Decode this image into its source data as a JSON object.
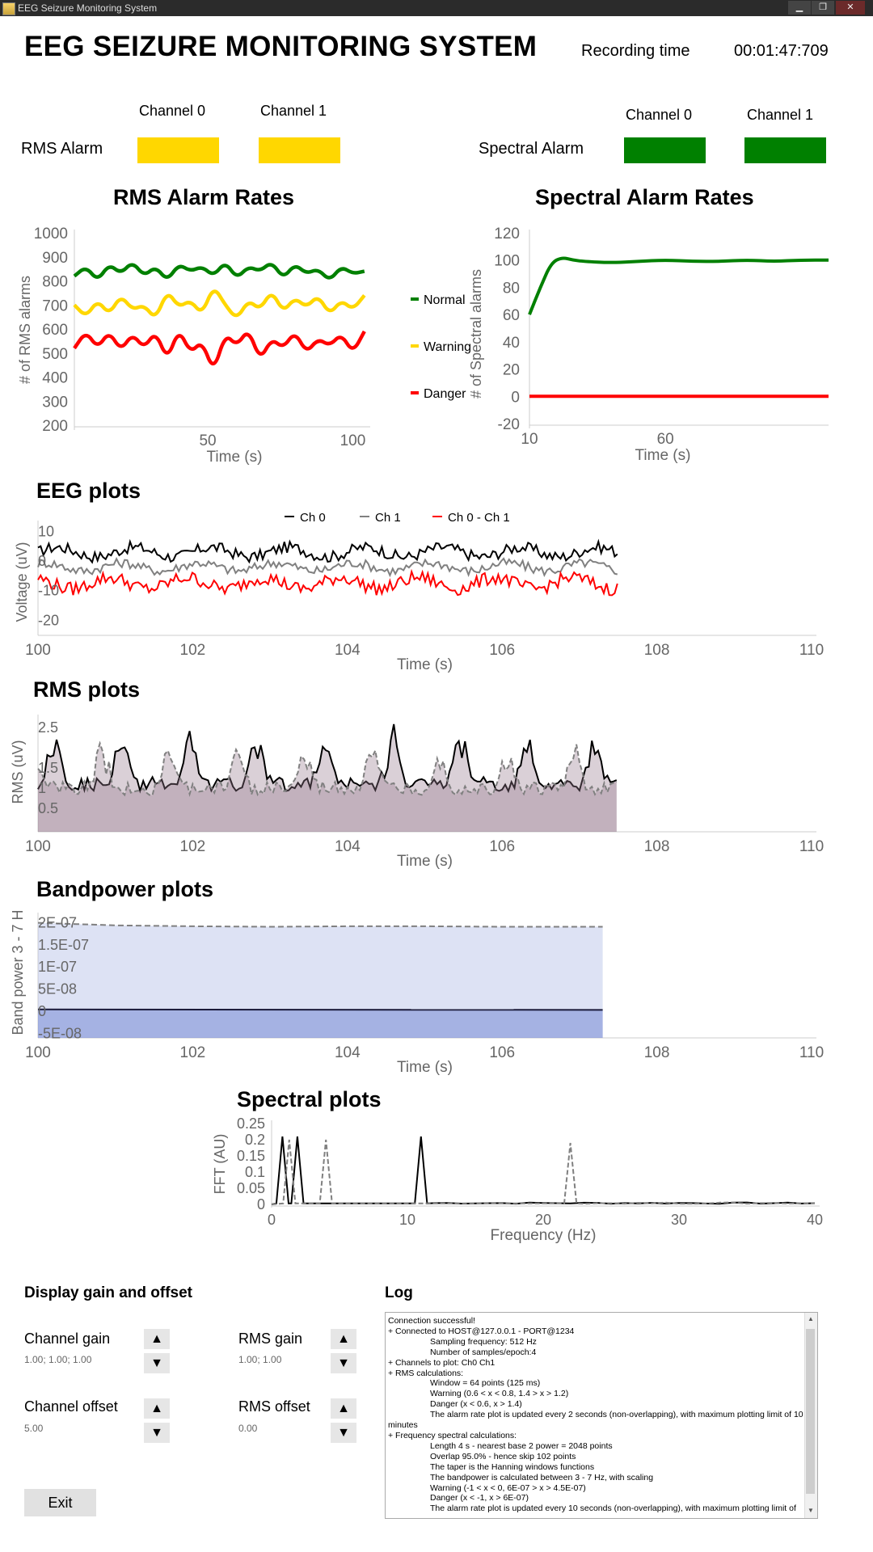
{
  "window": {
    "title": "EEG Seizure Monitoring System",
    "min": "▁",
    "max": "❐",
    "close": "✕"
  },
  "header": {
    "app_title": "EEG SEIZURE MONITORING SYSTEM",
    "recording_label": "Recording time",
    "recording_value": "00:01:47:709"
  },
  "alarms": {
    "rms": {
      "label": "RMS Alarm",
      "ch0": "Channel 0",
      "ch1": "Channel 1",
      "ch0_color": "#ffd700",
      "ch1_color": "#ffd700"
    },
    "spectral": {
      "label": "Spectral Alarm",
      "ch0": "Channel 0",
      "ch1": "Channel 1",
      "ch0_color": "#008000",
      "ch1_color": "#008000"
    }
  },
  "colors": {
    "normal": "#008000",
    "warning": "#ffd700",
    "danger": "#ff0000",
    "ch0": "#000000",
    "ch1": "#808080",
    "diff": "#ff0000"
  },
  "chart_data": [
    {
      "id": "rms_rates",
      "type": "line",
      "title": "RMS Alarm Rates",
      "xlabel": "Time (s)",
      "ylabel": "# of RMS alarms",
      "xlim": [
        4,
        106
      ],
      "ylim": [
        200,
        1000
      ],
      "xticks": [
        50,
        100
      ],
      "yticks": [
        1000,
        900,
        800,
        700,
        600,
        500,
        400,
        300,
        200
      ],
      "series": [
        {
          "name": "Normal",
          "color": "#008000",
          "x": [
            4,
            8,
            12,
            16,
            20,
            24,
            28,
            32,
            36,
            40,
            44,
            48,
            52,
            56,
            60,
            64,
            68,
            72,
            76,
            80,
            84,
            88,
            92,
            96,
            100,
            104
          ],
          "values": [
            820,
            860,
            800,
            870,
            830,
            880,
            820,
            860,
            800,
            870,
            840,
            860,
            820,
            880,
            810,
            860,
            840,
            880,
            810,
            870,
            830,
            850,
            800,
            860,
            830,
            840
          ]
        },
        {
          "name": "Warning",
          "color": "#ffd700",
          "x": [
            4,
            8,
            12,
            16,
            20,
            24,
            28,
            32,
            36,
            40,
            44,
            48,
            52,
            56,
            60,
            64,
            68,
            72,
            76,
            80,
            84,
            88,
            92,
            96,
            100,
            104
          ],
          "values": [
            700,
            650,
            720,
            660,
            740,
            680,
            700,
            640,
            760,
            690,
            720,
            660,
            780,
            700,
            640,
            720,
            680,
            760,
            670,
            730,
            690,
            740,
            660,
            720,
            680,
            740
          ]
        },
        {
          "name": "Danger",
          "color": "#ff0000",
          "x": [
            4,
            8,
            12,
            16,
            20,
            24,
            28,
            32,
            36,
            40,
            44,
            48,
            52,
            56,
            60,
            64,
            68,
            72,
            76,
            80,
            84,
            88,
            92,
            96,
            100,
            104
          ],
          "values": [
            520,
            590,
            520,
            590,
            510,
            580,
            520,
            590,
            470,
            600,
            500,
            550,
            420,
            580,
            530,
            600,
            470,
            560,
            520,
            590,
            500,
            560,
            530,
            580,
            500,
            590
          ]
        }
      ]
    },
    {
      "id": "spectral_rates",
      "type": "line",
      "title": "Spectral Alarm Rates",
      "xlabel": "Time (s)",
      "ylabel": "# of Spectral alarms",
      "xlim": [
        10,
        120
      ],
      "ylim": [
        -20,
        120
      ],
      "xticks": [
        10,
        60
      ],
      "yticks": [
        120,
        100,
        80,
        60,
        40,
        20,
        0,
        -20
      ],
      "legend": [
        "Normal",
        "Warning",
        "Danger"
      ],
      "series": [
        {
          "name": "Normal",
          "color": "#008000",
          "x": [
            10,
            14,
            18,
            22,
            26,
            30,
            40,
            50,
            60,
            70,
            80,
            90,
            100,
            110,
            120
          ],
          "values": [
            60,
            80,
            98,
            102,
            100,
            99,
            98,
            99,
            100,
            99,
            99,
            100,
            99,
            100,
            100
          ]
        },
        {
          "name": "Danger",
          "color": "#ff0000",
          "x": [
            10,
            120
          ],
          "values": [
            0,
            0
          ]
        }
      ]
    },
    {
      "id": "eeg",
      "type": "line",
      "title": "EEG plots",
      "xlabel": "Time (s)",
      "ylabel": "Voltage (uV)",
      "xlim": [
        100,
        110
      ],
      "ylim": [
        -24,
        12
      ],
      "xticks": [
        100,
        102,
        104,
        106,
        108,
        110
      ],
      "yticks": [
        10,
        0,
        -10,
        -20
      ],
      "legend": [
        "Ch 0",
        "Ch 1",
        "Ch 0 - Ch 1"
      ],
      "series": [
        {
          "name": "Ch 0",
          "color": "#000000",
          "center": 3,
          "amp": 3,
          "x_end": 107.5
        },
        {
          "name": "Ch 1",
          "color": "#808080",
          "center": -2,
          "amp": 2.5,
          "x_end": 107.5
        },
        {
          "name": "Ch 0 - Ch 1",
          "color": "#ff0000",
          "center": -7.5,
          "amp": 3.5,
          "x_end": 107.5
        }
      ]
    },
    {
      "id": "rms",
      "type": "area",
      "title": "RMS plots",
      "xlabel": "Time (s)",
      "ylabel": "RMS (uV)",
      "xlim": [
        100,
        110
      ],
      "ylim": [
        0,
        2.7
      ],
      "xticks": [
        100,
        102,
        104,
        106,
        108,
        110
      ],
      "yticks": [
        2.5,
        1.5,
        1,
        0.5
      ],
      "series": [
        {
          "name": "Ch 0",
          "color": "#000000",
          "x_end": 107.5,
          "base": 1.1,
          "amp": 1.2
        },
        {
          "name": "Ch 1",
          "color": "#808080",
          "x_end": 107.5,
          "base": 1.0,
          "amp": 0.9
        }
      ]
    },
    {
      "id": "bandpower",
      "type": "area",
      "title": "Bandpower plots",
      "xlabel": "Time (s)",
      "ylabel": "Band power 3 - 7 H",
      "xlim": [
        100,
        110
      ],
      "ylim": [
        -5.5e-08,
        2.1e-07
      ],
      "xticks": [
        100,
        102,
        104,
        106,
        108,
        110
      ],
      "yticks": [
        "2E-07",
        "1.5E-07",
        "1E-07",
        "5E-08",
        "0",
        "-5E-08"
      ],
      "series": [
        {
          "name": "Ch 0",
          "color": "#1a1a3a",
          "x": [
            100,
            107.3
          ],
          "values": [
            2e-09,
            1e-09
          ]
        },
        {
          "name": "Ch 1",
          "color": "#808080",
          "x": [
            100,
            100.5,
            101,
            102,
            103,
            104,
            105,
            106,
            107,
            107.3
          ],
          "values": [
            1.98e-07,
            1.95e-07,
            1.92e-07,
            1.9e-07,
            1.89e-07,
            1.9e-07,
            1.9e-07,
            1.89e-07,
            1.89e-07,
            1.89e-07
          ]
        }
      ]
    },
    {
      "id": "spectral",
      "type": "line",
      "title": "Spectral plots",
      "xlabel": "Frequency (Hz)",
      "ylabel": "FFT (AU)",
      "xlim": [
        0,
        40
      ],
      "ylim": [
        0,
        0.25
      ],
      "xticks": [
        0,
        10,
        20,
        30,
        40
      ],
      "yticks": [
        0.25,
        0.2,
        0.15,
        0.1,
        0.05,
        0
      ],
      "series": [
        {
          "name": "Ch 0",
          "color": "#000000",
          "peaks": [
            [
              0.8,
              0.21
            ],
            [
              1.9,
              0.21
            ],
            [
              11,
              0.21
            ]
          ]
        },
        {
          "name": "Ch 1",
          "color": "#808080",
          "dashed": true,
          "peaks": [
            [
              1.3,
              0.2
            ],
            [
              4,
              0.2
            ],
            [
              22,
              0.19
            ]
          ]
        }
      ]
    }
  ],
  "controls": {
    "title": "Display gain and offset",
    "channel_gain": {
      "label": "Channel gain",
      "value": "1.00; 1.00; 1.00"
    },
    "rms_gain": {
      "label": "RMS gain",
      "value": "1.00; 1.00"
    },
    "channel_offset": {
      "label": "Channel offset",
      "value": "5.00"
    },
    "rms_offset": {
      "label": "RMS offset",
      "value": "0.00"
    },
    "up": "▲",
    "down": "▼"
  },
  "log": {
    "title": "Log",
    "lines": [
      "Connection successful!",
      "+ Connected to HOST@127.0.0.1 - PORT@1234",
      "               Sampling frequency: 512 Hz",
      "               Number of samples/epoch:4",
      "+ Channels to plot: Ch0  Ch1",
      "+ RMS calculations:",
      "               Window = 64 points (125 ms)",
      "               Warning (0.6 < x < 0.8, 1.4 > x > 1.2)",
      "               Danger (x < 0.6, x > 1.4)",
      "               The alarm rate plot is updated every 2 seconds (non-overlapping), with maximum plotting limit of 10",
      "minutes",
      "+ Frequency spectral calculations:",
      "               Length 4 s - nearest base 2 power = 2048 points",
      "               Overlap 95.0% - hence skip 102 points",
      "               The taper is the Hanning windows functions",
      "               The bandpower is calculated between 3 - 7 Hz, with scaling",
      "               Warning (-1 < x < 0, 6E-07 > x > 4.5E-07)",
      "               Danger (x < -1, x > 6E-07)",
      "               The alarm rate plot is updated every 10 seconds (non-overlapping), with maximum plotting limit of"
    ]
  },
  "exit_label": "Exit"
}
